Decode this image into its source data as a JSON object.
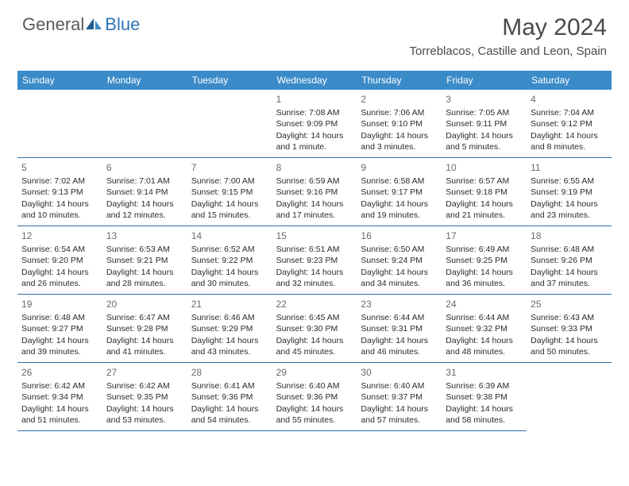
{
  "logo": {
    "general": "General",
    "blue": "Blue"
  },
  "header": {
    "month_title": "May 2024",
    "location": "Torreblacos, Castille and Leon, Spain"
  },
  "colors": {
    "header_bg": "#3b8bc9",
    "header_text": "#ffffff",
    "cell_border": "#2e6da4",
    "logo_blue": "#2e74b5",
    "text": "#333333"
  },
  "weekdays": [
    "Sunday",
    "Monday",
    "Tuesday",
    "Wednesday",
    "Thursday",
    "Friday",
    "Saturday"
  ],
  "leading_blanks": 3,
  "days": [
    {
      "n": "1",
      "sr": "Sunrise: 7:08 AM",
      "ss": "Sunset: 9:09 PM",
      "d1": "Daylight: 14 hours",
      "d2": "and 1 minute."
    },
    {
      "n": "2",
      "sr": "Sunrise: 7:06 AM",
      "ss": "Sunset: 9:10 PM",
      "d1": "Daylight: 14 hours",
      "d2": "and 3 minutes."
    },
    {
      "n": "3",
      "sr": "Sunrise: 7:05 AM",
      "ss": "Sunset: 9:11 PM",
      "d1": "Daylight: 14 hours",
      "d2": "and 5 minutes."
    },
    {
      "n": "4",
      "sr": "Sunrise: 7:04 AM",
      "ss": "Sunset: 9:12 PM",
      "d1": "Daylight: 14 hours",
      "d2": "and 8 minutes."
    },
    {
      "n": "5",
      "sr": "Sunrise: 7:02 AM",
      "ss": "Sunset: 9:13 PM",
      "d1": "Daylight: 14 hours",
      "d2": "and 10 minutes."
    },
    {
      "n": "6",
      "sr": "Sunrise: 7:01 AM",
      "ss": "Sunset: 9:14 PM",
      "d1": "Daylight: 14 hours",
      "d2": "and 12 minutes."
    },
    {
      "n": "7",
      "sr": "Sunrise: 7:00 AM",
      "ss": "Sunset: 9:15 PM",
      "d1": "Daylight: 14 hours",
      "d2": "and 15 minutes."
    },
    {
      "n": "8",
      "sr": "Sunrise: 6:59 AM",
      "ss": "Sunset: 9:16 PM",
      "d1": "Daylight: 14 hours",
      "d2": "and 17 minutes."
    },
    {
      "n": "9",
      "sr": "Sunrise: 6:58 AM",
      "ss": "Sunset: 9:17 PM",
      "d1": "Daylight: 14 hours",
      "d2": "and 19 minutes."
    },
    {
      "n": "10",
      "sr": "Sunrise: 6:57 AM",
      "ss": "Sunset: 9:18 PM",
      "d1": "Daylight: 14 hours",
      "d2": "and 21 minutes."
    },
    {
      "n": "11",
      "sr": "Sunrise: 6:55 AM",
      "ss": "Sunset: 9:19 PM",
      "d1": "Daylight: 14 hours",
      "d2": "and 23 minutes."
    },
    {
      "n": "12",
      "sr": "Sunrise: 6:54 AM",
      "ss": "Sunset: 9:20 PM",
      "d1": "Daylight: 14 hours",
      "d2": "and 26 minutes."
    },
    {
      "n": "13",
      "sr": "Sunrise: 6:53 AM",
      "ss": "Sunset: 9:21 PM",
      "d1": "Daylight: 14 hours",
      "d2": "and 28 minutes."
    },
    {
      "n": "14",
      "sr": "Sunrise: 6:52 AM",
      "ss": "Sunset: 9:22 PM",
      "d1": "Daylight: 14 hours",
      "d2": "and 30 minutes."
    },
    {
      "n": "15",
      "sr": "Sunrise: 6:51 AM",
      "ss": "Sunset: 9:23 PM",
      "d1": "Daylight: 14 hours",
      "d2": "and 32 minutes."
    },
    {
      "n": "16",
      "sr": "Sunrise: 6:50 AM",
      "ss": "Sunset: 9:24 PM",
      "d1": "Daylight: 14 hours",
      "d2": "and 34 minutes."
    },
    {
      "n": "17",
      "sr": "Sunrise: 6:49 AM",
      "ss": "Sunset: 9:25 PM",
      "d1": "Daylight: 14 hours",
      "d2": "and 36 minutes."
    },
    {
      "n": "18",
      "sr": "Sunrise: 6:48 AM",
      "ss": "Sunset: 9:26 PM",
      "d1": "Daylight: 14 hours",
      "d2": "and 37 minutes."
    },
    {
      "n": "19",
      "sr": "Sunrise: 6:48 AM",
      "ss": "Sunset: 9:27 PM",
      "d1": "Daylight: 14 hours",
      "d2": "and 39 minutes."
    },
    {
      "n": "20",
      "sr": "Sunrise: 6:47 AM",
      "ss": "Sunset: 9:28 PM",
      "d1": "Daylight: 14 hours",
      "d2": "and 41 minutes."
    },
    {
      "n": "21",
      "sr": "Sunrise: 6:46 AM",
      "ss": "Sunset: 9:29 PM",
      "d1": "Daylight: 14 hours",
      "d2": "and 43 minutes."
    },
    {
      "n": "22",
      "sr": "Sunrise: 6:45 AM",
      "ss": "Sunset: 9:30 PM",
      "d1": "Daylight: 14 hours",
      "d2": "and 45 minutes."
    },
    {
      "n": "23",
      "sr": "Sunrise: 6:44 AM",
      "ss": "Sunset: 9:31 PM",
      "d1": "Daylight: 14 hours",
      "d2": "and 46 minutes."
    },
    {
      "n": "24",
      "sr": "Sunrise: 6:44 AM",
      "ss": "Sunset: 9:32 PM",
      "d1": "Daylight: 14 hours",
      "d2": "and 48 minutes."
    },
    {
      "n": "25",
      "sr": "Sunrise: 6:43 AM",
      "ss": "Sunset: 9:33 PM",
      "d1": "Daylight: 14 hours",
      "d2": "and 50 minutes."
    },
    {
      "n": "26",
      "sr": "Sunrise: 6:42 AM",
      "ss": "Sunset: 9:34 PM",
      "d1": "Daylight: 14 hours",
      "d2": "and 51 minutes."
    },
    {
      "n": "27",
      "sr": "Sunrise: 6:42 AM",
      "ss": "Sunset: 9:35 PM",
      "d1": "Daylight: 14 hours",
      "d2": "and 53 minutes."
    },
    {
      "n": "28",
      "sr": "Sunrise: 6:41 AM",
      "ss": "Sunset: 9:36 PM",
      "d1": "Daylight: 14 hours",
      "d2": "and 54 minutes."
    },
    {
      "n": "29",
      "sr": "Sunrise: 6:40 AM",
      "ss": "Sunset: 9:36 PM",
      "d1": "Daylight: 14 hours",
      "d2": "and 55 minutes."
    },
    {
      "n": "30",
      "sr": "Sunrise: 6:40 AM",
      "ss": "Sunset: 9:37 PM",
      "d1": "Daylight: 14 hours",
      "d2": "and 57 minutes."
    },
    {
      "n": "31",
      "sr": "Sunrise: 6:39 AM",
      "ss": "Sunset: 9:38 PM",
      "d1": "Daylight: 14 hours",
      "d2": "and 58 minutes."
    }
  ]
}
